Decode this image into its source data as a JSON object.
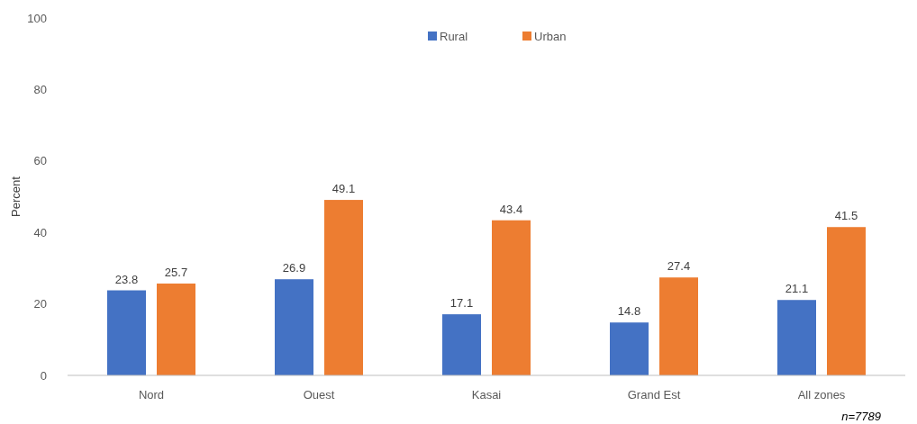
{
  "chart_data": {
    "type": "bar",
    "ylabel": "Percent",
    "categories": [
      "Nord",
      "Ouest",
      "Kasai",
      "Grand Est",
      "All zones"
    ],
    "series": [
      {
        "name": "Rural",
        "color": "#4472c4",
        "values": [
          23.8,
          26.9,
          17.1,
          14.8,
          21.1
        ]
      },
      {
        "name": "Urban",
        "color": "#ed7d31",
        "values": [
          25.7,
          49.1,
          43.4,
          27.4,
          41.5
        ]
      }
    ],
    "ylim": [
      0,
      100
    ],
    "yticks": [
      0,
      20,
      40,
      60,
      80,
      100
    ],
    "grid": false,
    "legend": "top",
    "data_labels": true,
    "annotations": [
      "n=7789"
    ]
  }
}
